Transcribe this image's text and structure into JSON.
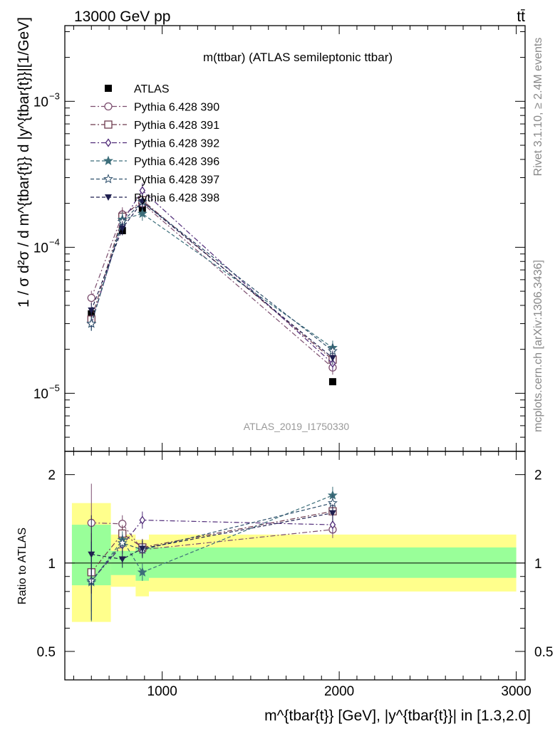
{
  "header": {
    "left": "13000 GeV pp",
    "right": "tt̄"
  },
  "side_labels": {
    "rivet": "Rivet 3.1.10, ≥ 2.4M events",
    "mcplots": "mcplots.cern.ch [arXiv:1306.3436]"
  },
  "chart_data": [
    {
      "type": "scatter",
      "title": "m(ttbar) (ATLAS semileptonic ttbar)",
      "watermark": "ATLAS_2019_I1750330",
      "ylabel": "1 / σ d²σ / d m^{tbar{t}} d |y^{tbar{t}}|[1/GeV]",
      "yscale": "log",
      "ylim": [
        4e-06,
        0.0033
      ],
      "xlim": [
        450,
        3050
      ],
      "y_ticks": [
        {
          "value": 1e-05,
          "base": "10",
          "exp": "−5"
        },
        {
          "value": 0.0001,
          "base": "10",
          "exp": "−4"
        },
        {
          "value": 0.001,
          "base": "10",
          "exp": "−3"
        }
      ],
      "legend_position": "top-left",
      "x": [
        600,
        775,
        888,
        1963
      ],
      "series": [
        {
          "name": "ATLAS",
          "marker": "square-filled",
          "color": "#000000",
          "values": [
            3.5e-05,
            0.00013,
            0.000185,
            1.2e-05
          ]
        },
        {
          "name": "Pythia 6.428 390",
          "marker": "circle-open",
          "color": "#7b4d6e",
          "dash": "dashdot",
          "values": [
            4.5e-05,
            0.000168,
            0.0002,
            1.5e-05
          ]
        },
        {
          "name": "Pythia 6.428 391",
          "marker": "square-open",
          "color": "#6e3b4e",
          "dash": "dashdot",
          "values": [
            3.2e-05,
            0.000162,
            0.00021,
            1.7e-05
          ]
        },
        {
          "name": "Pythia 6.428 392",
          "marker": "diamond-open",
          "color": "#4f2a78",
          "dash": "dashdot",
          "values": [
            3e-05,
            0.00015,
            0.000245,
            1.6e-05
          ]
        },
        {
          "name": "Pythia 6.428 396",
          "marker": "star-filled",
          "color": "#3c6e7a",
          "dash": "dashed",
          "values": [
            3e-05,
            0.000155,
            0.00017,
            2.05e-05
          ]
        },
        {
          "name": "Pythia 6.428 397",
          "marker": "star-open",
          "color": "#2e4f6b",
          "dash": "dashed",
          "values": [
            3e-05,
            0.00015,
            0.000205,
            1.95e-05
          ]
        },
        {
          "name": "Pythia 6.428 398",
          "marker": "triangle-down-filled",
          "color": "#1f1f4f",
          "dash": "dashed",
          "values": [
            3.7e-05,
            0.000135,
            0.000205,
            1.75e-05
          ]
        }
      ]
    },
    {
      "type": "scatter",
      "ylabel": "Ratio to ATLAS",
      "xlabel": "m^{tbar{t}} [GeV], |y^{tbar{t}}| in [1.3,2.0]",
      "yscale": "log",
      "ylim": [
        0.4,
        2.4
      ],
      "xlim": [
        450,
        3050
      ],
      "y_ticks": [
        0.5,
        1,
        2
      ],
      "x_ticks": [
        1000,
        2000,
        3000
      ],
      "reference_line": 1,
      "bands": [
        {
          "xmin": 490,
          "xmax": 710,
          "yellow": [
            0.63,
            1.6
          ],
          "green": [
            0.84,
            1.35
          ]
        },
        {
          "xmin": 710,
          "xmax": 850,
          "yellow": [
            0.83,
            1.25
          ],
          "green": [
            0.91,
            1.1
          ]
        },
        {
          "xmin": 850,
          "xmax": 925,
          "yellow": [
            0.77,
            1.2
          ],
          "green": [
            0.87,
            1.13
          ]
        },
        {
          "xmin": 925,
          "xmax": 3000,
          "yellow": [
            0.8,
            1.25
          ],
          "green": [
            0.89,
            1.13
          ]
        }
      ],
      "x": [
        600,
        775,
        888,
        1963
      ],
      "series": [
        {
          "name": "Pythia 6.428 390",
          "values": [
            1.37,
            1.36,
            1.11,
            1.3
          ]
        },
        {
          "name": "Pythia 6.428 391",
          "values": [
            0.93,
            1.26,
            1.13,
            1.5
          ]
        },
        {
          "name": "Pythia 6.428 392",
          "values": [
            0.87,
            1.15,
            1.4,
            1.35
          ]
        },
        {
          "name": "Pythia 6.428 396",
          "values": [
            0.86,
            1.2,
            0.93,
            1.7
          ]
        },
        {
          "name": "Pythia 6.428 397",
          "values": [
            0.87,
            1.17,
            1.11,
            1.6
          ]
        },
        {
          "name": "Pythia 6.428 398",
          "values": [
            1.07,
            1.03,
            1.12,
            1.48
          ]
        }
      ]
    }
  ]
}
